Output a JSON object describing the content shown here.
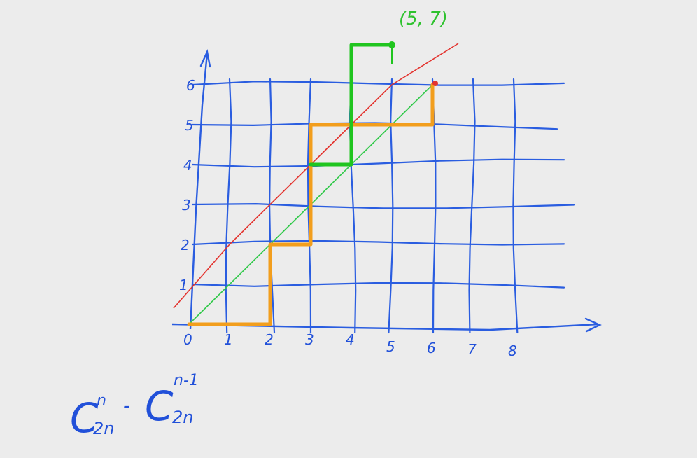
{
  "colors": {
    "grid": "#2a5de0",
    "diagonal_upper": "#e3342f",
    "diagonal_main": "#31c94a",
    "path_orange": "#f29e1d",
    "path_green": "#20c51f",
    "ink": "#2150d9"
  },
  "axes": {
    "x_labels": [
      "0",
      "1",
      "2",
      "3",
      "4",
      "5",
      "6",
      "7",
      "8"
    ],
    "y_labels": [
      "1",
      "2",
      "3",
      "4",
      "5",
      "6"
    ]
  },
  "annotations": {
    "point_label": "(5, 7)",
    "formula": {
      "c1": "C",
      "sup1": "n",
      "sub1": "2n",
      "minus": "-",
      "c2": "C",
      "sup2": "n-1",
      "sub2": "2n"
    }
  },
  "paths": {
    "orange_monotone_path": [
      [
        0,
        0
      ],
      [
        2,
        0
      ],
      [
        2,
        2
      ],
      [
        3,
        2
      ],
      [
        3,
        5
      ],
      [
        4,
        5
      ],
      [
        6,
        5
      ],
      [
        6,
        6
      ]
    ],
    "green_reflected_path": [
      [
        3,
        4
      ],
      [
        4,
        4
      ],
      [
        4,
        7
      ],
      [
        5,
        7
      ]
    ],
    "red_line": "y = x + 1",
    "green_line": "y = x",
    "endpoint": [
      6,
      6
    ]
  }
}
